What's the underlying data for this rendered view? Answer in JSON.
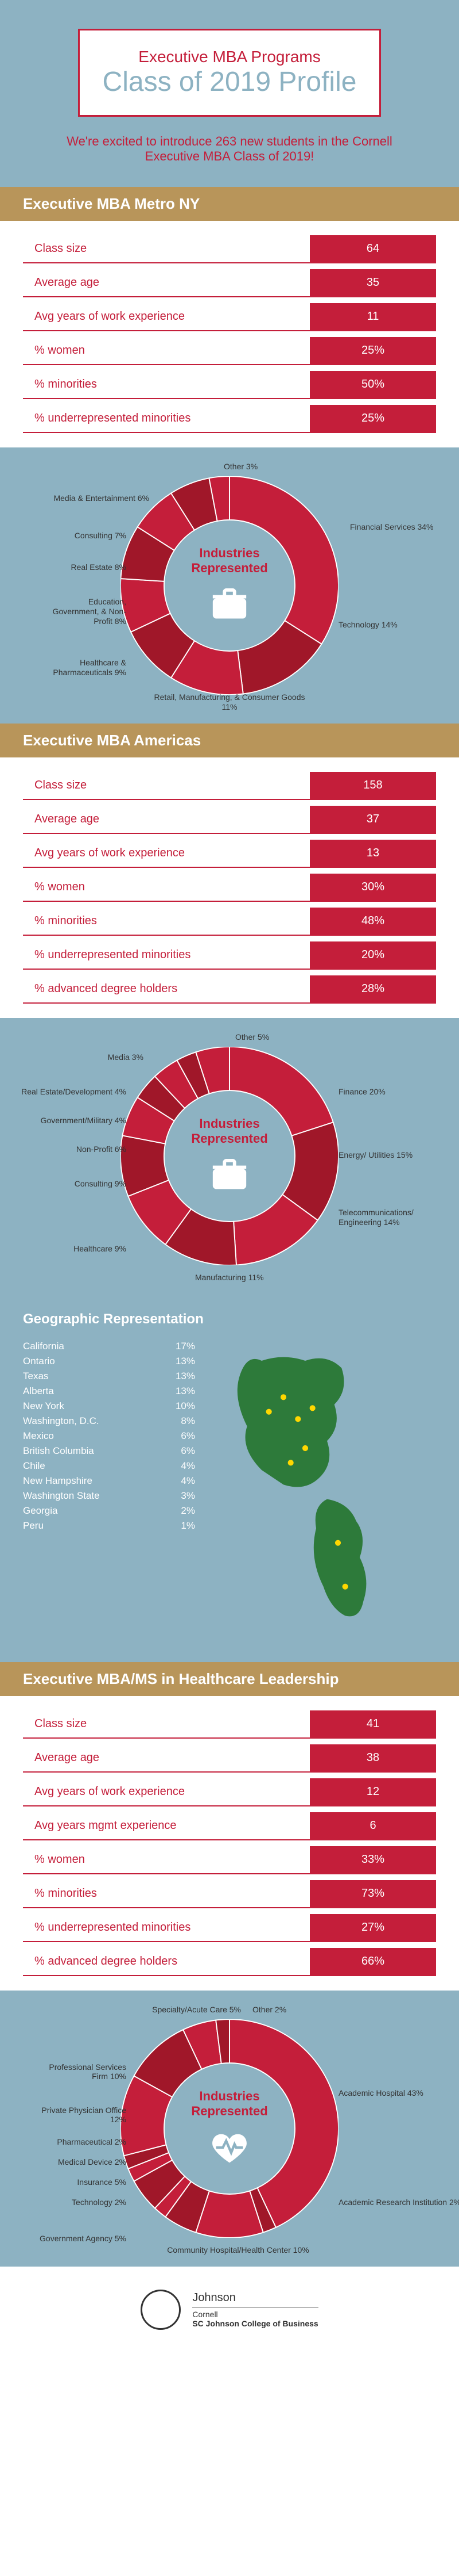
{
  "header": {
    "subtitle": "Executive MBA Programs",
    "title": "Class of 2019 Profile",
    "intro": "We're excited to introduce 263 new students in the Cornell Executive MBA Class of 2019!"
  },
  "colors": {
    "red": "#c41e3a",
    "teal": "#8db2c2",
    "gold": "#b8955a",
    "green": "#2d7a3a",
    "donut_dark": "#a01729",
    "donut_light": "#d4374a"
  },
  "programs": [
    {
      "name": "Executive MBA Metro NY",
      "stats": [
        {
          "label": "Class size",
          "value": "64"
        },
        {
          "label": "Average age",
          "value": "35"
        },
        {
          "label": "Avg years of work experience",
          "value": "11"
        },
        {
          "label": "% women",
          "value": "25%"
        },
        {
          "label": "% minorities",
          "value": "50%"
        },
        {
          "label": "% underrepresented minorities",
          "value": "25%"
        }
      ],
      "chart": {
        "center_title": "Industries Represented",
        "icon": "briefcase",
        "slices": [
          {
            "label": "Financial Services 34%",
            "pct": 34
          },
          {
            "label": "Technology 14%",
            "pct": 14
          },
          {
            "label": "Retail, Manufacturing, & Consumer Goods 11%",
            "pct": 11
          },
          {
            "label": "Healthcare & Pharmaceuticals 9%",
            "pct": 9
          },
          {
            "label": "Education, Government, & Non-Profit 8%",
            "pct": 8
          },
          {
            "label": "Real Estate 8%",
            "pct": 8
          },
          {
            "label": "Consulting 7%",
            "pct": 7
          },
          {
            "label": "Media & Entertainment 6%",
            "pct": 6
          },
          {
            "label": "Other 3%",
            "pct": 3
          }
        ]
      }
    },
    {
      "name": "Executive MBA Americas",
      "stats": [
        {
          "label": "Class size",
          "value": "158"
        },
        {
          "label": "Average age",
          "value": "37"
        },
        {
          "label": "Avg years of work experience",
          "value": "13"
        },
        {
          "label": "% women",
          "value": "30%"
        },
        {
          "label": "% minorities",
          "value": "48%"
        },
        {
          "label": "% underrepresented minorities",
          "value": "20%"
        },
        {
          "label": "% advanced degree holders",
          "value": "28%"
        }
      ],
      "chart": {
        "center_title": "Industries Represented",
        "icon": "briefcase",
        "slices": [
          {
            "label": "Finance 20%",
            "pct": 20
          },
          {
            "label": "Energy/ Utilities 15%",
            "pct": 15
          },
          {
            "label": "Telecommunications/ Engineering 14%",
            "pct": 14
          },
          {
            "label": "Manufacturing 11%",
            "pct": 11
          },
          {
            "label": "Healthcare 9%",
            "pct": 9
          },
          {
            "label": "Consulting 9%",
            "pct": 9
          },
          {
            "label": "Non-Profit 6%",
            "pct": 6
          },
          {
            "label": "Government/Military 4%",
            "pct": 4
          },
          {
            "label": "Real Estate/Development 4%",
            "pct": 4
          },
          {
            "label": "Media 3%",
            "pct": 3
          },
          {
            "label": "Other 5%",
            "pct": 5
          }
        ]
      },
      "geo": {
        "title": "Geographic Representation",
        "items": [
          {
            "place": "California",
            "pct": "17%"
          },
          {
            "place": "Ontario",
            "pct": "13%"
          },
          {
            "place": "Texas",
            "pct": "13%"
          },
          {
            "place": "Alberta",
            "pct": "13%"
          },
          {
            "place": "New York",
            "pct": "10%"
          },
          {
            "place": "Washington, D.C.",
            "pct": "8%"
          },
          {
            "place": "Mexico",
            "pct": "6%"
          },
          {
            "place": "British Columbia",
            "pct": "6%"
          },
          {
            "place": "Chile",
            "pct": "4%"
          },
          {
            "place": "New Hampshire",
            "pct": "4%"
          },
          {
            "place": "Washington State",
            "pct": "3%"
          },
          {
            "place": "Georgia",
            "pct": "2%"
          },
          {
            "place": "Peru",
            "pct": "1%"
          }
        ]
      }
    },
    {
      "name": "Executive MBA/MS in Healthcare Leadership",
      "stats": [
        {
          "label": "Class size",
          "value": "41"
        },
        {
          "label": "Average age",
          "value": "38"
        },
        {
          "label": "Avg years of work experience",
          "value": "12"
        },
        {
          "label": "Avg years mgmt experience",
          "value": "6"
        },
        {
          "label": "% women",
          "value": "33%"
        },
        {
          "label": "% minorities",
          "value": "73%"
        },
        {
          "label": "% underrepresented minorities",
          "value": "27%"
        },
        {
          "label": "% advanced degree holders",
          "value": "66%"
        }
      ],
      "chart": {
        "center_title": "Industries Represented",
        "icon": "heart",
        "slices": [
          {
            "label": "Academic Hospital 43%",
            "pct": 43
          },
          {
            "label": "Academic Research Institution 2%",
            "pct": 2
          },
          {
            "label": "Community Hospital/Health Center 10%",
            "pct": 10
          },
          {
            "label": "Government Agency 5%",
            "pct": 5
          },
          {
            "label": "Technology 2%",
            "pct": 2
          },
          {
            "label": "Insurance 5%",
            "pct": 5
          },
          {
            "label": "Medical Device 2%",
            "pct": 2
          },
          {
            "label": "Pharmaceutical 2%",
            "pct": 2
          },
          {
            "label": "Private Physician Office 12%",
            "pct": 12
          },
          {
            "label": "Professional Services Firm 10%",
            "pct": 10
          },
          {
            "label": "Specialty/Acute Care 5%",
            "pct": 5
          },
          {
            "label": "Other 2%",
            "pct": 2
          }
        ]
      }
    }
  ],
  "footer": {
    "line1": "Johnson",
    "line2": "Cornell",
    "line3": "SC Johnson College of Business"
  }
}
